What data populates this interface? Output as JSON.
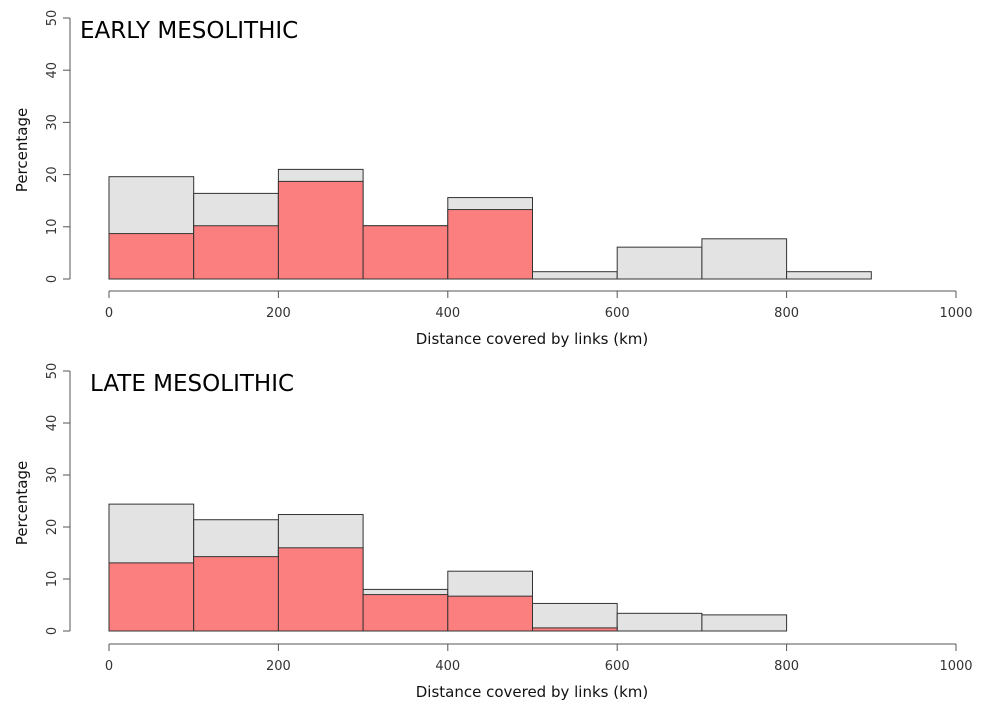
{
  "colors": {
    "total": "#e3e3e3",
    "subset": "#fc7f7f",
    "outline": "#333333"
  },
  "chart_data": [
    {
      "type": "bar",
      "title": "EARLY MESOLITHIC",
      "xlabel": "Distance covered by links (km)",
      "ylabel": "Percentage",
      "xlim": [
        0,
        1000
      ],
      "ylim": [
        0,
        50
      ],
      "xticks": [
        "0",
        "200",
        "400",
        "600",
        "800",
        "1000"
      ],
      "yticks": [
        "0",
        "10",
        "20",
        "30",
        "40",
        "50"
      ],
      "bin_edges": [
        0,
        100,
        200,
        300,
        400,
        500,
        600,
        700,
        800,
        900
      ],
      "series": [
        {
          "values": [
            19.6,
            16.4,
            21.0,
            10.2,
            15.6,
            1.4,
            6.1,
            7.7,
            1.4
          ]
        },
        {
          "values": [
            8.7,
            10.2,
            18.7,
            10.2,
            13.3,
            0,
            0,
            0,
            0
          ]
        }
      ]
    },
    {
      "type": "bar",
      "title": "LATE MESOLITHIC",
      "xlabel": "Distance covered by links (km)",
      "ylabel": "Percentage",
      "xlim": [
        0,
        1000
      ],
      "ylim": [
        0,
        50
      ],
      "xticks": [
        "0",
        "200",
        "400",
        "600",
        "800",
        "1000"
      ],
      "yticks": [
        "0",
        "10",
        "20",
        "30",
        "40",
        "50"
      ],
      "bin_edges": [
        0,
        100,
        200,
        300,
        400,
        500,
        600,
        700,
        800
      ],
      "series": [
        {
          "values": [
            24.4,
            21.4,
            22.4,
            8.0,
            11.5,
            5.3,
            3.4,
            3.1
          ]
        },
        {
          "values": [
            13.1,
            14.3,
            16.0,
            7.0,
            6.7,
            0.6,
            0,
            0
          ]
        }
      ]
    }
  ]
}
